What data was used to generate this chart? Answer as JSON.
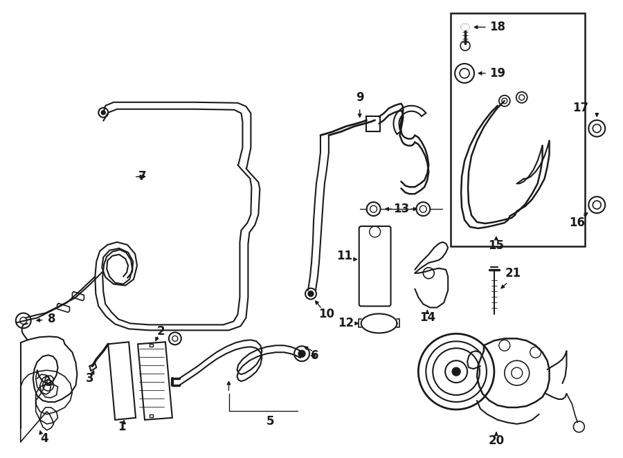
{
  "background_color": "#ffffff",
  "line_color": "#1a1a1a",
  "lw": 1.5,
  "fig_w": 9.0,
  "fig_h": 6.62,
  "dpi": 100,
  "fs": 12
}
